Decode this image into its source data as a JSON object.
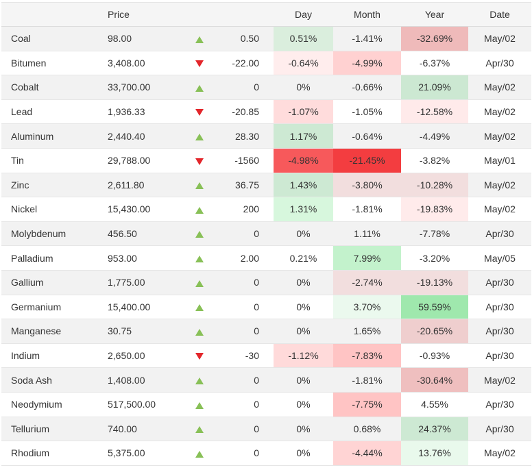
{
  "header": {
    "name": "",
    "price": "Price",
    "arrow": "",
    "change": "",
    "day": "Day",
    "month": "Month",
    "year": "Year",
    "date": "Date"
  },
  "rows": [
    {
      "name": "Coal",
      "price": "98.00",
      "dir": "up",
      "change": "0.50",
      "day": "0.51%",
      "month": "-1.41%",
      "year": "-32.69%",
      "date": "May/02",
      "day_bg": "#daeedd",
      "month_bg": "",
      "year_bg": "#efbaba"
    },
    {
      "name": "Bitumen",
      "price": "3,408.00",
      "dir": "down",
      "change": "-22.00",
      "day": "-0.64%",
      "month": "-4.99%",
      "year": "-6.37%",
      "date": "Apr/30",
      "day_bg": "#ffeded",
      "month_bg": "#ffd1d1",
      "year_bg": ""
    },
    {
      "name": "Cobalt",
      "price": "33,700.00",
      "dir": "up",
      "change": "0",
      "day": "0%",
      "month": "-0.66%",
      "year": "21.09%",
      "date": "May/02",
      "day_bg": "",
      "month_bg": "",
      "year_bg": "#cce8d2"
    },
    {
      "name": "Lead",
      "price": "1,936.33",
      "dir": "down",
      "change": "-20.85",
      "day": "-1.07%",
      "month": "-1.05%",
      "year": "-12.58%",
      "date": "May/02",
      "day_bg": "#ffdcdc",
      "month_bg": "",
      "year_bg": "#ffeaea"
    },
    {
      "name": "Aluminum",
      "price": "2,440.40",
      "dir": "up",
      "change": "28.30",
      "day": "1.17%",
      "month": "-0.64%",
      "year": "-4.49%",
      "date": "May/02",
      "day_bg": "#cde9d3",
      "month_bg": "",
      "year_bg": ""
    },
    {
      "name": "Tin",
      "price": "29,788.00",
      "dir": "down",
      "change": "-1560",
      "day": "-4.98%",
      "month": "-21.45%",
      "year": "-3.82%",
      "date": "May/01",
      "day_bg": "#f7595b",
      "month_bg": "#f33d40",
      "year_bg": ""
    },
    {
      "name": "Zinc",
      "price": "2,611.80",
      "dir": "up",
      "change": "36.75",
      "day": "1.43%",
      "month": "-3.80%",
      "year": "-10.28%",
      "date": "May/02",
      "day_bg": "#cde9d3",
      "month_bg": "#f2dede",
      "year_bg": "#f2dede"
    },
    {
      "name": "Nickel",
      "price": "15,430.00",
      "dir": "up",
      "change": "200",
      "day": "1.31%",
      "month": "-1.81%",
      "year": "-19.83%",
      "date": "May/02",
      "day_bg": "#d7f7dd",
      "month_bg": "",
      "year_bg": "#ffebeb"
    },
    {
      "name": "Molybdenum",
      "price": "456.50",
      "dir": "up",
      "change": "0",
      "day": "0%",
      "month": "1.11%",
      "year": "-7.78%",
      "date": "Apr/30",
      "day_bg": "",
      "month_bg": "",
      "year_bg": ""
    },
    {
      "name": "Palladium",
      "price": "953.00",
      "dir": "up",
      "change": "2.00",
      "day": "0.21%",
      "month": "7.99%",
      "year": "-3.20%",
      "date": "May/05",
      "day_bg": "",
      "month_bg": "#c3f2cc",
      "year_bg": ""
    },
    {
      "name": "Gallium",
      "price": "1,775.00",
      "dir": "up",
      "change": "0",
      "day": "0%",
      "month": "-2.74%",
      "year": "-19.13%",
      "date": "Apr/30",
      "day_bg": "",
      "month_bg": "#f2dede",
      "year_bg": "#f2dede"
    },
    {
      "name": "Germanium",
      "price": "15,400.00",
      "dir": "up",
      "change": "0",
      "day": "0%",
      "month": "3.70%",
      "year": "59.59%",
      "date": "Apr/30",
      "day_bg": "",
      "month_bg": "#ebf9ee",
      "year_bg": "#9fe8ad"
    },
    {
      "name": "Manganese",
      "price": "30.75",
      "dir": "up",
      "change": "0",
      "day": "0%",
      "month": "1.65%",
      "year": "-20.65%",
      "date": "Apr/30",
      "day_bg": "",
      "month_bg": "",
      "year_bg": "#efcece"
    },
    {
      "name": "Indium",
      "price": "2,650.00",
      "dir": "down",
      "change": "-30",
      "day": "-1.12%",
      "month": "-7.83%",
      "year": "-0.93%",
      "date": "Apr/30",
      "day_bg": "#ffdada",
      "month_bg": "#ffc4c4",
      "year_bg": ""
    },
    {
      "name": "Soda Ash",
      "price": "1,408.00",
      "dir": "up",
      "change": "0",
      "day": "0%",
      "month": "-1.81%",
      "year": "-30.64%",
      "date": "May/02",
      "day_bg": "",
      "month_bg": "",
      "year_bg": "#efbfbf"
    },
    {
      "name": "Neodymium",
      "price": "517,500.00",
      "dir": "up",
      "change": "0",
      "day": "0%",
      "month": "-7.75%",
      "year": "4.55%",
      "date": "Apr/30",
      "day_bg": "",
      "month_bg": "#ffc4c4",
      "year_bg": ""
    },
    {
      "name": "Tellurium",
      "price": "740.00",
      "dir": "up",
      "change": "0",
      "day": "0%",
      "month": "0.68%",
      "year": "24.37%",
      "date": "Apr/30",
      "day_bg": "",
      "month_bg": "",
      "year_bg": "#cde9d3"
    },
    {
      "name": "Rhodium",
      "price": "5,375.00",
      "dir": "up",
      "change": "0",
      "day": "0%",
      "month": "-4.44%",
      "year": "13.76%",
      "date": "May/02",
      "day_bg": "",
      "month_bg": "#ffd4d4",
      "year_bg": "#e9f9ec"
    }
  ]
}
